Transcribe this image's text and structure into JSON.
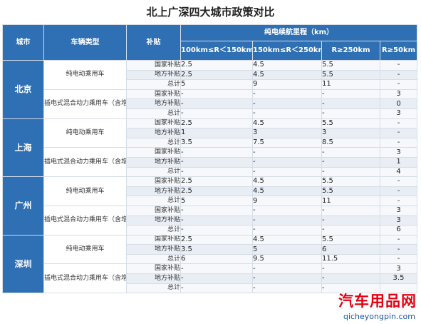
{
  "title": "北上广深四大城市政策对比",
  "header": {
    "city": "城市",
    "vehicle_type": "车辆类型",
    "subsidy": "补贴",
    "range_group": "纯电续航里程（km）",
    "ranges": [
      "100km≤R＜150km",
      "150km≤R＜250km",
      "R≥250km",
      "R≥50km"
    ]
  },
  "cities": [
    {
      "name": "北京",
      "groups": [
        {
          "type": "纯电动乘用车",
          "rows": [
            {
              "sub": "国家补贴",
              "v": [
                "2.5",
                "4.5",
                "5.5",
                "-"
              ]
            },
            {
              "sub": "地方补贴",
              "v": [
                "2.5",
                "4.5",
                "5.5",
                "-"
              ]
            },
            {
              "sub": "总计",
              "v": [
                "5",
                "9",
                "11",
                "-"
              ]
            }
          ]
        },
        {
          "type": "插电式混合动力乘用车（含增程式）",
          "rows": [
            {
              "sub": "国家补贴",
              "v": [
                "-",
                "-",
                "-",
                "3"
              ]
            },
            {
              "sub": "地方补贴",
              "v": [
                "-",
                "-",
                "-",
                "0"
              ]
            },
            {
              "sub": "总计",
              "v": [
                "-",
                "-",
                "-",
                "3"
              ]
            }
          ]
        }
      ]
    },
    {
      "name": "上海",
      "groups": [
        {
          "type": "纯电动乘用车",
          "rows": [
            {
              "sub": "国家补贴",
              "v": [
                "2.5",
                "4.5",
                "5.5",
                "-"
              ]
            },
            {
              "sub": "地方补贴",
              "v": [
                "1",
                "3",
                "3",
                "-"
              ]
            },
            {
              "sub": "总计",
              "v": [
                "3.5",
                "7.5",
                "8.5",
                "-"
              ]
            }
          ]
        },
        {
          "type": "插电式混合动力乘用车（含增程式）",
          "rows": [
            {
              "sub": "国家补贴",
              "v": [
                "-",
                "-",
                "-",
                "3"
              ]
            },
            {
              "sub": "地方补贴",
              "v": [
                "-",
                "-",
                "-",
                "1"
              ]
            },
            {
              "sub": "总计",
              "v": [
                "-",
                "-",
                "-",
                "4"
              ]
            }
          ]
        }
      ]
    },
    {
      "name": "广州",
      "groups": [
        {
          "type": "纯电动乘用车",
          "rows": [
            {
              "sub": "国家补贴",
              "v": [
                "2.5",
                "4.5",
                "5.5",
                "-"
              ]
            },
            {
              "sub": "地方补贴",
              "v": [
                "2.5",
                "4.5",
                "5.5",
                "-"
              ]
            },
            {
              "sub": "总计",
              "v": [
                "5",
                "9",
                "11",
                "-"
              ]
            }
          ]
        },
        {
          "type": "插电式混合动力乘用车（含增程式）",
          "rows": [
            {
              "sub": "国家补贴",
              "v": [
                "-",
                "-",
                "-",
                "3"
              ]
            },
            {
              "sub": "地方补贴",
              "v": [
                "-",
                "-",
                "-",
                "3"
              ]
            },
            {
              "sub": "总计",
              "v": [
                "-",
                "-",
                "-",
                "6"
              ]
            }
          ]
        }
      ]
    },
    {
      "name": "深圳",
      "groups": [
        {
          "type": "纯电动乘用车",
          "rows": [
            {
              "sub": "国家补贴",
              "v": [
                "2.5",
                "4.5",
                "5.5",
                "-"
              ]
            },
            {
              "sub": "地方补贴",
              "v": [
                "3.5",
                "5",
                "6",
                "-"
              ]
            },
            {
              "sub": "总计",
              "v": [
                "6",
                "9.5",
                "11.5",
                "-"
              ]
            }
          ]
        },
        {
          "type": "插电式混合动力乘用车（含增程式）",
          "rows": [
            {
              "sub": "国家补贴",
              "v": [
                "-",
                "-",
                "-",
                "3"
              ]
            },
            {
              "sub": "地方补贴",
              "v": [
                "-",
                "-",
                "-",
                "3.5"
              ]
            },
            {
              "sub": "总计",
              "v": [
                "-",
                "-",
                "-",
                ""
              ]
            }
          ]
        }
      ]
    }
  ],
  "watermark": {
    "name": "汽车用品网",
    "url": "qicheyongpin.com"
  }
}
